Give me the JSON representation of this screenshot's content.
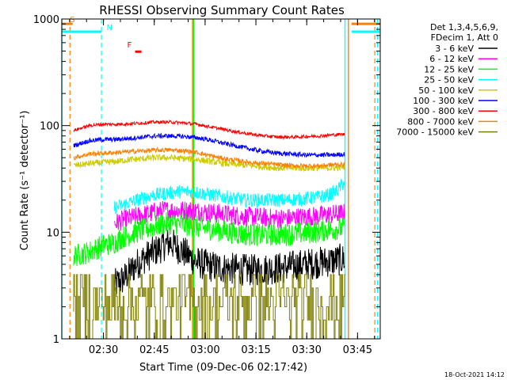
{
  "chart_data": {
    "type": "line",
    "title": "RHESSI Observing Summary Count Rates",
    "xlabel": "Start Time (09-Dec-06 02:17:42)",
    "ylabel": "Count Rate (s⁻¹ detector⁻¹)",
    "yscale": "log",
    "ylim": [
      1,
      1000
    ],
    "xlim_minutes": [
      0,
      94
    ],
    "x_ticks": [
      {
        "min": 12.3,
        "label": "02:30"
      },
      {
        "min": 27.3,
        "label": "02:45"
      },
      {
        "min": 42.3,
        "label": "03:00"
      },
      {
        "min": 57.3,
        "label": "03:15"
      },
      {
        "min": 72.3,
        "label": "03:30"
      },
      {
        "min": 87.3,
        "label": "03:45"
      }
    ],
    "y_ticks": [
      {
        "value": 1,
        "label": "1"
      },
      {
        "value": 10,
        "label": "10"
      },
      {
        "value": 100,
        "label": "100"
      },
      {
        "value": 1000,
        "label": "1000"
      }
    ],
    "legend": {
      "header": [
        "Det 1,3,4,5,6,9,",
        "FDecim 1, Att 0"
      ],
      "placement": "right"
    },
    "series": [
      {
        "name": "3 - 6 keV",
        "color": "#000000",
        "start": 15.5,
        "end": 83.5,
        "points": [
          [
            15.5,
            3.2
          ],
          [
            18,
            3.6
          ],
          [
            20,
            4.2
          ],
          [
            22,
            5.0
          ],
          [
            24,
            5.6
          ],
          [
            26,
            6.2
          ],
          [
            28,
            6.8
          ],
          [
            30,
            7.5
          ],
          [
            32,
            8.0
          ],
          [
            34,
            7.2
          ],
          [
            36,
            6.5
          ],
          [
            38,
            5.8
          ],
          [
            40,
            5.2
          ],
          [
            44,
            4.8
          ],
          [
            48,
            4.6
          ],
          [
            52,
            4.5
          ],
          [
            56,
            4.4
          ],
          [
            60,
            4.5
          ],
          [
            64,
            4.6
          ],
          [
            68,
            4.8
          ],
          [
            72,
            5.0
          ],
          [
            76,
            5.2
          ],
          [
            80,
            5.4
          ],
          [
            83.5,
            5.6
          ]
        ]
      },
      {
        "name": "6 - 12 keV",
        "color": "#ff00ff",
        "start": 15.5,
        "end": 83.5,
        "points": [
          [
            15.5,
            12
          ],
          [
            18,
            13
          ],
          [
            22,
            14
          ],
          [
            26,
            15
          ],
          [
            30,
            16
          ],
          [
            34,
            16
          ],
          [
            38,
            16
          ],
          [
            42,
            15.5
          ],
          [
            46,
            15
          ],
          [
            50,
            14.5
          ],
          [
            54,
            14
          ],
          [
            58,
            13.8
          ],
          [
            62,
            13.5
          ],
          [
            66,
            13.5
          ],
          [
            70,
            13.8
          ],
          [
            74,
            14
          ],
          [
            78,
            14.5
          ],
          [
            83.5,
            15
          ]
        ]
      },
      {
        "name": "12 - 25 keV",
        "color": "#00ff00",
        "start": 3.5,
        "end": 83.5,
        "points": [
          [
            3.5,
            6
          ],
          [
            8,
            6.5
          ],
          [
            12,
            7.5
          ],
          [
            15.5,
            8
          ],
          [
            18,
            9
          ],
          [
            22,
            10
          ],
          [
            26,
            11
          ],
          [
            30,
            12
          ],
          [
            34,
            12
          ],
          [
            38,
            11.5
          ],
          [
            42,
            11
          ],
          [
            46,
            10.5
          ],
          [
            50,
            10
          ],
          [
            54,
            9.5
          ],
          [
            58,
            9.5
          ],
          [
            62,
            9.5
          ],
          [
            66,
            9.5
          ],
          [
            70,
            9.8
          ],
          [
            74,
            10
          ],
          [
            78,
            10.5
          ],
          [
            83.5,
            11
          ]
        ]
      },
      {
        "name": "25 - 50 keV",
        "color": "#00ffff",
        "start": 15.5,
        "end": 83.5,
        "points": [
          [
            15.5,
            17
          ],
          [
            18,
            18
          ],
          [
            22,
            20
          ],
          [
            26,
            22
          ],
          [
            30,
            23
          ],
          [
            34,
            24
          ],
          [
            38,
            24
          ],
          [
            42,
            23
          ],
          [
            46,
            22
          ],
          [
            50,
            21
          ],
          [
            54,
            20
          ],
          [
            58,
            20
          ],
          [
            62,
            20
          ],
          [
            66,
            20
          ],
          [
            70,
            20.5
          ],
          [
            74,
            21
          ],
          [
            78,
            22
          ],
          [
            81,
            24
          ],
          [
            83.5,
            30
          ]
        ]
      },
      {
        "name": "50 - 100 keV",
        "color": "#cccc00",
        "start": 3.5,
        "end": 83.5,
        "points": [
          [
            3.5,
            42
          ],
          [
            8,
            44
          ],
          [
            12,
            45
          ],
          [
            16,
            46
          ],
          [
            20,
            48
          ],
          [
            24,
            49
          ],
          [
            28,
            50
          ],
          [
            32,
            50
          ],
          [
            36,
            49
          ],
          [
            40,
            48
          ],
          [
            44,
            46
          ],
          [
            48,
            44
          ],
          [
            52,
            43
          ],
          [
            56,
            42
          ],
          [
            60,
            41
          ],
          [
            64,
            40
          ],
          [
            68,
            40
          ],
          [
            72,
            40
          ],
          [
            76,
            40
          ],
          [
            80,
            40
          ],
          [
            83.5,
            41
          ]
        ]
      },
      {
        "name": "100 - 300 keV",
        "color": "#0000ff",
        "start": 3.5,
        "end": 83.5,
        "points": [
          [
            3.5,
            65
          ],
          [
            8,
            72
          ],
          [
            12,
            74
          ],
          [
            16,
            74
          ],
          [
            20,
            76
          ],
          [
            24,
            78
          ],
          [
            28,
            80
          ],
          [
            32,
            80
          ],
          [
            36,
            79
          ],
          [
            40,
            77
          ],
          [
            44,
            73
          ],
          [
            48,
            68
          ],
          [
            52,
            64
          ],
          [
            56,
            60
          ],
          [
            60,
            57
          ],
          [
            64,
            55
          ],
          [
            68,
            54
          ],
          [
            72,
            53
          ],
          [
            76,
            53
          ],
          [
            80,
            53
          ],
          [
            83.5,
            54
          ]
        ]
      },
      {
        "name": "300 - 800 keV",
        "color": "#ff0000",
        "start": 3.5,
        "end": 83.5,
        "points": [
          [
            3.5,
            90
          ],
          [
            8,
            100
          ],
          [
            12,
            103
          ],
          [
            16,
            103
          ],
          [
            20,
            104
          ],
          [
            24,
            106
          ],
          [
            28,
            108
          ],
          [
            32,
            108
          ],
          [
            36,
            106
          ],
          [
            40,
            103
          ],
          [
            44,
            97
          ],
          [
            48,
            92
          ],
          [
            52,
            87
          ],
          [
            56,
            83
          ],
          [
            60,
            80
          ],
          [
            64,
            78
          ],
          [
            68,
            78
          ],
          [
            72,
            79
          ],
          [
            76,
            80
          ],
          [
            80,
            82
          ],
          [
            83.5,
            83
          ]
        ]
      },
      {
        "name": "800 - 7000 keV",
        "color": "#ff8000",
        "start": 3.5,
        "end": 83.5,
        "points": [
          [
            3.5,
            50
          ],
          [
            8,
            54
          ],
          [
            12,
            55
          ],
          [
            16,
            56
          ],
          [
            20,
            57
          ],
          [
            24,
            58
          ],
          [
            28,
            59
          ],
          [
            32,
            59
          ],
          [
            36,
            58
          ],
          [
            40,
            56
          ],
          [
            44,
            52
          ],
          [
            48,
            49
          ],
          [
            52,
            47
          ],
          [
            56,
            45
          ],
          [
            60,
            44
          ],
          [
            64,
            43
          ],
          [
            68,
            42
          ],
          [
            72,
            42
          ],
          [
            76,
            42
          ],
          [
            80,
            43
          ],
          [
            83.5,
            43
          ]
        ]
      },
      {
        "name": "7000 - 15000 keV",
        "color": "#808000",
        "start": 3.5,
        "end": 83.5,
        "points": [
          [
            3.5,
            1.8
          ],
          [
            83.5,
            1.8
          ]
        ]
      }
    ],
    "markers": [
      {
        "label": "S",
        "color": "#ff8000",
        "min": 2.4,
        "y": 900,
        "dashed_x": [
          2.4,
          92.4
        ],
        "bar": [
          [
            0,
            3.2
          ],
          [
            85.5,
            94
          ]
        ]
      },
      {
        "label": "N",
        "color": "#00ffff",
        "min": 13.2,
        "y": 760,
        "dashed_x": [
          11.7,
          93.2
        ],
        "bar": [
          [
            0,
            11.7
          ],
          [
            85.5,
            94
          ]
        ]
      },
      {
        "label": "F",
        "color": "#ff0000",
        "min": 19.3,
        "y": 520
      }
    ],
    "vlines": [
      {
        "min": 0,
        "color": "#00ffff"
      },
      {
        "min": 83.6,
        "color": "#00ffff"
      },
      {
        "min": 84.6,
        "color": "#ff8000"
      },
      {
        "min": 38.6,
        "color": "#ff8000"
      },
      {
        "min": 38.9,
        "color": "#00ff00"
      }
    ],
    "footer_timestamp": "18-Oct-2021 14:12"
  }
}
